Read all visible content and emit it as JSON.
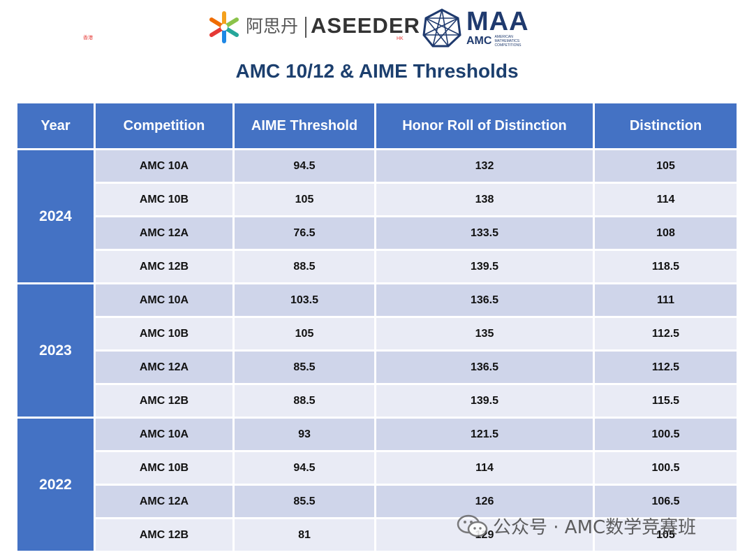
{
  "logos": {
    "aseeder_cn": "阿思丹",
    "aseeder_cn_sub": "香港",
    "aseeder_en": "ASEEDER",
    "aseeder_en_sub": "HK",
    "maa": "MAA",
    "amc": "AMC",
    "amc_small": "AMERICAN MATHEMATICS COMPETITIONS"
  },
  "title": "AMC 10/12 & AIME Thresholds",
  "table": {
    "headers": [
      "Year",
      "Competition",
      "AIME Threshold",
      "Honor Roll of Distinction",
      "Distinction"
    ],
    "groups": [
      {
        "year": "2024",
        "rows": [
          [
            "AMC 10A",
            "94.5",
            "132",
            "105"
          ],
          [
            "AMC 10B",
            "105",
            "138",
            "114"
          ],
          [
            "AMC 12A",
            "76.5",
            "133.5",
            "108"
          ],
          [
            "AMC 12B",
            "88.5",
            "139.5",
            "118.5"
          ]
        ]
      },
      {
        "year": "2023",
        "rows": [
          [
            "AMC 10A",
            "103.5",
            "136.5",
            "111"
          ],
          [
            "AMC 10B",
            "105",
            "135",
            "112.5"
          ],
          [
            "AMC 12A",
            "85.5",
            "136.5",
            "112.5"
          ],
          [
            "AMC 12B",
            "88.5",
            "139.5",
            "115.5"
          ]
        ]
      },
      {
        "year": "2022",
        "rows": [
          [
            "AMC 10A",
            "93",
            "121.5",
            "100.5"
          ],
          [
            "AMC 10B",
            "94.5",
            "114",
            "100.5"
          ],
          [
            "AMC 12A",
            "85.5",
            "126",
            "106.5"
          ],
          [
            "AMC 12B",
            "81",
            "129",
            "105"
          ]
        ]
      }
    ]
  },
  "watermark": "公众号 · AMC数学竞赛班",
  "colors": {
    "header_bg": "#4472c4",
    "row_dark": "#cfd5ea",
    "row_light": "#e9ebf5",
    "title": "#1c3f6e"
  }
}
